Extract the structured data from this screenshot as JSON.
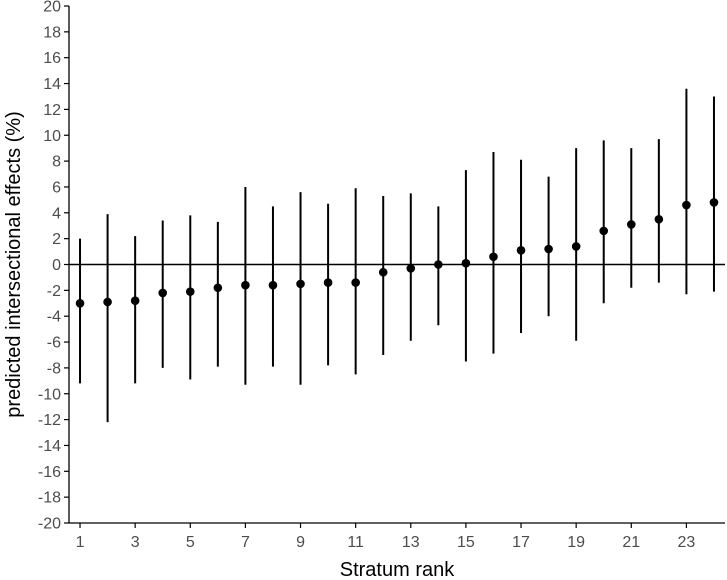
{
  "chart_data": {
    "type": "scatter",
    "subtype": "point-with-error-bars",
    "title": "",
    "xlabel": "Stratum rank",
    "ylabel": "predicted intersectional effects (%)",
    "xlim": [
      0.6,
      24.4
    ],
    "ylim": [
      -20,
      20
    ],
    "x_ticks": [
      1,
      3,
      5,
      7,
      9,
      11,
      13,
      15,
      17,
      19,
      21,
      23
    ],
    "y_ticks": [
      -20,
      -18,
      -16,
      -14,
      -12,
      -10,
      -8,
      -6,
      -4,
      -2,
      0,
      2,
      4,
      6,
      8,
      10,
      12,
      14,
      16,
      18,
      20
    ],
    "reference_line_y": 0,
    "grid": false,
    "legend": "none",
    "colors": {
      "point": "#000000",
      "error_bar": "#000000",
      "axis": "#000000",
      "tick_label": "#4d4d4d"
    },
    "series": [
      {
        "x": [
          1,
          2,
          3,
          4,
          5,
          6,
          7,
          8,
          9,
          10,
          11,
          12,
          13,
          14,
          15,
          16,
          17,
          18,
          19,
          20,
          21,
          22,
          23,
          24
        ],
        "y": [
          -3.0,
          -2.9,
          -2.8,
          -2.2,
          -2.1,
          -1.8,
          -1.6,
          -1.6,
          -1.5,
          -1.4,
          -1.4,
          -0.6,
          -0.3,
          0.0,
          0.1,
          0.6,
          1.1,
          1.2,
          1.4,
          2.6,
          3.1,
          3.5,
          4.6,
          4.8
        ],
        "lower": [
          -9.2,
          -12.2,
          -9.2,
          -8.0,
          -8.9,
          -7.9,
          -9.3,
          -7.9,
          -9.3,
          -7.8,
          -8.5,
          -7.0,
          -5.9,
          -4.7,
          -7.5,
          -6.9,
          -5.3,
          -4.0,
          -5.9,
          -3.0,
          -1.8,
          -1.4,
          -2.3,
          -2.1
        ],
        "upper": [
          2.0,
          3.9,
          2.2,
          3.4,
          3.8,
          3.3,
          6.0,
          4.5,
          5.6,
          4.7,
          5.9,
          5.3,
          5.5,
          4.5,
          7.3,
          8.7,
          8.1,
          6.8,
          9.0,
          9.6,
          9.0,
          9.7,
          13.6,
          13.0
        ]
      }
    ]
  }
}
